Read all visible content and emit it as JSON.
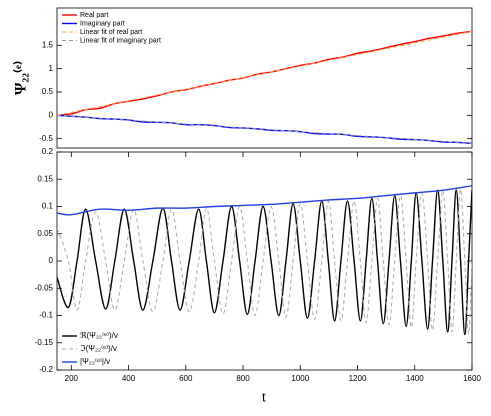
{
  "chart_data": [
    {
      "type": "line",
      "ylabel": "Ψ₂₂⁽ᵉ⁾",
      "xlim": [
        150,
        1600
      ],
      "ylim": [
        -0.7,
        2.3
      ],
      "yticks": [
        -0.5,
        0,
        0.5,
        1,
        1.5
      ],
      "legend": "upper left",
      "series": [
        {
          "name": "Real part",
          "color": "#ff0000",
          "dashed": false,
          "x": [
            150,
            200,
            250,
            300,
            350,
            400,
            450,
            500,
            550,
            600,
            650,
            700,
            750,
            800,
            850,
            900,
            950,
            1000,
            1050,
            1100,
            1150,
            1200,
            1250,
            1300,
            1350,
            1400,
            1450,
            1500,
            1550,
            1600
          ],
          "values": [
            0.0,
            0.03,
            0.12,
            0.15,
            0.25,
            0.3,
            0.35,
            0.42,
            0.5,
            0.55,
            0.62,
            0.68,
            0.75,
            0.8,
            0.88,
            0.93,
            1.0,
            1.07,
            1.12,
            1.2,
            1.25,
            1.33,
            1.38,
            1.45,
            1.52,
            1.58,
            1.65,
            1.7,
            1.76,
            1.8
          ]
        },
        {
          "name": "Imaginary part",
          "color": "#0000ff",
          "dashed": false,
          "x": [
            150,
            200,
            250,
            300,
            350,
            400,
            450,
            500,
            550,
            600,
            650,
            700,
            750,
            800,
            850,
            900,
            950,
            1000,
            1050,
            1100,
            1150,
            1200,
            1250,
            1300,
            1350,
            1400,
            1450,
            1500,
            1550,
            1600
          ],
          "values": [
            0.0,
            -0.02,
            -0.04,
            -0.07,
            -0.08,
            -0.1,
            -0.14,
            -0.15,
            -0.16,
            -0.2,
            -0.2,
            -0.22,
            -0.26,
            -0.27,
            -0.29,
            -0.32,
            -0.33,
            -0.35,
            -0.39,
            -0.4,
            -0.41,
            -0.45,
            -0.46,
            -0.48,
            -0.51,
            -0.52,
            -0.54,
            -0.57,
            -0.58,
            -0.6
          ]
        },
        {
          "name": "Linear fit of real part",
          "color": "#ffa040",
          "dashed": true,
          "x": [
            150,
            1600
          ],
          "values": [
            0.0,
            1.8
          ]
        },
        {
          "name": "Linear fit of imaginary part",
          "color": "#999999",
          "dashed": true,
          "x": [
            150,
            1600
          ],
          "values": [
            0.0,
            -0.6
          ]
        }
      ]
    },
    {
      "type": "line",
      "xlabel": "t",
      "xlim": [
        150,
        1600
      ],
      "ylim": [
        -0.2,
        0.2
      ],
      "xticks": [
        200,
        400,
        600,
        800,
        1000,
        1200,
        1400,
        1600
      ],
      "yticks": [
        -0.2,
        -0.15,
        -0.1,
        -0.05,
        0,
        0.05,
        0.1,
        0.15,
        0.2
      ],
      "legend": "lower left",
      "series": [
        {
          "name": "ℜ(Ψ₂₂⁽ᵉ⁾)/v",
          "color": "#000000",
          "dashed": false,
          "x": [
            150,
            190,
            220,
            250,
            285,
            320,
            352,
            385,
            418,
            450,
            485,
            520,
            550,
            580,
            612,
            645,
            672,
            700,
            730,
            760,
            788,
            815,
            842,
            870,
            898,
            925,
            950,
            975,
            1000,
            1025,
            1050,
            1075,
            1098,
            1120,
            1142,
            1165,
            1188,
            1210,
            1230,
            1250,
            1270,
            1290,
            1310,
            1330,
            1350,
            1370,
            1388,
            1405,
            1425,
            1445,
            1462,
            1480,
            1498,
            1515,
            1530,
            1545,
            1560,
            1575,
            1588,
            1600
          ],
          "values": [
            -0.03,
            -0.085,
            0,
            0.095,
            0,
            -0.088,
            0,
            0.095,
            0,
            -0.09,
            0,
            0.097,
            0,
            -0.09,
            0,
            0.095,
            0,
            -0.095,
            0,
            0.1,
            0,
            -0.098,
            0,
            0.1,
            0,
            -0.1,
            0,
            0.105,
            0,
            -0.105,
            0,
            0.11,
            0,
            -0.11,
            0,
            0.11,
            0,
            -0.11,
            0,
            0.115,
            0,
            -0.115,
            0,
            0.12,
            0,
            -0.12,
            0,
            0.125,
            0,
            -0.125,
            0,
            0.13,
            0,
            -0.13,
            0,
            0.13,
            0,
            -0.135,
            0,
            0.13
          ]
        },
        {
          "name": "ℑ(Ψ₂₂⁽ᵉ⁾)/v",
          "color": "#aaaaaa",
          "dashed": true,
          "x": [
            150,
            190,
            220,
            250,
            285,
            320,
            352,
            385,
            418,
            450,
            485,
            520,
            550,
            580,
            612,
            645,
            672,
            700,
            730,
            760,
            788,
            815,
            842,
            870,
            898,
            925,
            950,
            975,
            1000,
            1025,
            1050,
            1075,
            1098,
            1120,
            1142,
            1165,
            1188,
            1210,
            1230,
            1250,
            1270,
            1290,
            1310,
            1330,
            1350,
            1370,
            1388,
            1405,
            1425,
            1445,
            1462,
            1480,
            1498,
            1515,
            1530,
            1545,
            1560,
            1575,
            1588,
            1600
          ],
          "values": [
            0.06,
            0,
            -0.09,
            0,
            0.09,
            0,
            -0.09,
            0,
            0.095,
            0,
            -0.093,
            0,
            0.095,
            0,
            -0.093,
            0,
            0.097,
            0,
            -0.097,
            0,
            0.1,
            0,
            -0.1,
            0,
            0.1,
            0,
            -0.103,
            0,
            0.105,
            0,
            -0.107,
            0,
            0.11,
            0,
            -0.11,
            0,
            0.11,
            0,
            -0.113,
            0,
            0.115,
            0,
            -0.117,
            0,
            0.12,
            0,
            -0.122,
            0,
            0.125,
            0,
            -0.127,
            0,
            0.13,
            0,
            -0.13,
            0,
            0.132,
            0,
            -0.135,
            0
          ]
        },
        {
          "name": "|Ψ₂₂⁽ᵉ⁾|/v",
          "color": "#2040e0",
          "dashed": false,
          "x": [
            150,
            200,
            300,
            400,
            500,
            600,
            700,
            800,
            900,
            1000,
            1100,
            1200,
            1300,
            1400,
            1500,
            1600
          ],
          "values": [
            0.088,
            0.085,
            0.095,
            0.093,
            0.097,
            0.097,
            0.1,
            0.102,
            0.104,
            0.108,
            0.112,
            0.115,
            0.12,
            0.125,
            0.13,
            0.138
          ]
        }
      ]
    }
  ]
}
